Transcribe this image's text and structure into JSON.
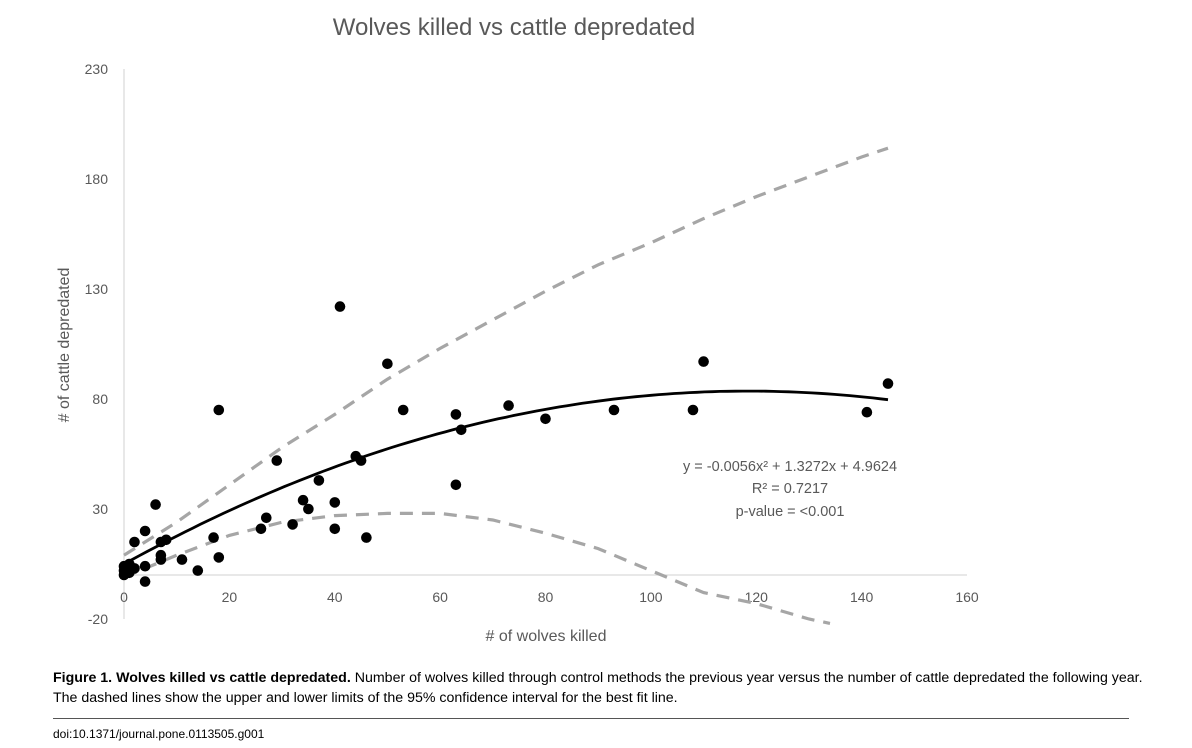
{
  "chart_data": {
    "type": "scatter",
    "title": "Wolves killed vs cattle depredated",
    "xlabel": "# of wolves killed",
    "ylabel": "# of cattle depredated",
    "xlim": [
      0,
      160
    ],
    "ylim": [
      -20,
      230
    ],
    "x_ticks": [
      0,
      20,
      40,
      60,
      80,
      100,
      120,
      140,
      160
    ],
    "y_ticks": [
      -20,
      30,
      80,
      130,
      180,
      230
    ],
    "points": [
      [
        0,
        0
      ],
      [
        0,
        2
      ],
      [
        0,
        4
      ],
      [
        1,
        1
      ],
      [
        1,
        2
      ],
      [
        1,
        3
      ],
      [
        1,
        5
      ],
      [
        2,
        3
      ],
      [
        2,
        15
      ],
      [
        4,
        -3
      ],
      [
        4,
        4
      ],
      [
        4,
        20
      ],
      [
        6,
        32
      ],
      [
        7,
        7
      ],
      [
        7,
        9
      ],
      [
        7,
        15
      ],
      [
        8,
        16
      ],
      [
        11,
        7
      ],
      [
        14,
        2
      ],
      [
        17,
        17
      ],
      [
        18,
        8
      ],
      [
        18,
        75
      ],
      [
        26,
        21
      ],
      [
        27,
        26
      ],
      [
        29,
        52
      ],
      [
        32,
        23
      ],
      [
        34,
        34
      ],
      [
        35,
        30
      ],
      [
        37,
        43
      ],
      [
        40,
        21
      ],
      [
        40,
        33
      ],
      [
        41,
        122
      ],
      [
        44,
        54
      ],
      [
        45,
        52
      ],
      [
        46,
        17
      ],
      [
        50,
        96
      ],
      [
        53,
        75
      ],
      [
        63,
        41
      ],
      [
        63,
        73
      ],
      [
        64,
        66
      ],
      [
        73,
        77
      ],
      [
        80,
        71
      ],
      [
        93,
        75
      ],
      [
        108,
        75
      ],
      [
        110,
        97
      ],
      [
        141,
        74
      ],
      [
        145,
        87
      ]
    ],
    "fit": {
      "name": "best fit",
      "equation": "y = -0.0056x² + 1.3272x + 4.9624",
      "coefficients": {
        "a": -0.0056,
        "b": 1.3272,
        "c": 4.9624
      },
      "x_range": [
        0,
        145
      ]
    },
    "ci_upper": {
      "name": "upper 95% CI",
      "x": [
        0,
        10,
        20,
        30,
        40,
        50,
        60,
        70,
        80,
        90,
        100,
        110,
        120,
        130,
        140,
        145
      ],
      "y": [
        9,
        24,
        41,
        58,
        73,
        89,
        103,
        116,
        129,
        141,
        151,
        162,
        172,
        181,
        190,
        194
      ]
    },
    "ci_lower": {
      "name": "lower 95% CI",
      "x": [
        0,
        10,
        20,
        30,
        40,
        50,
        60,
        70,
        80,
        90,
        100,
        110,
        120,
        130,
        134
      ],
      "y": [
        -1,
        9,
        18,
        24,
        27,
        28,
        28,
        25,
        19,
        12,
        2,
        -8,
        -13,
        -20,
        -22
      ]
    },
    "annotations": [
      "y = -0.0056x² + 1.3272x + 4.9624",
      "R² = 0.7217",
      "p-value = <0.001"
    ],
    "legend": "none",
    "grid": false
  },
  "caption": {
    "label": "Figure 1. Wolves killed vs cattle depredated.",
    "text": " Number of wolves killed through control methods the previous year versus the number of cattle depredated the following year. The dashed lines show the upper and lower limits of the 95% confidence interval for the best fit line."
  },
  "doi": "doi:10.1371/journal.pone.0113505.g001"
}
